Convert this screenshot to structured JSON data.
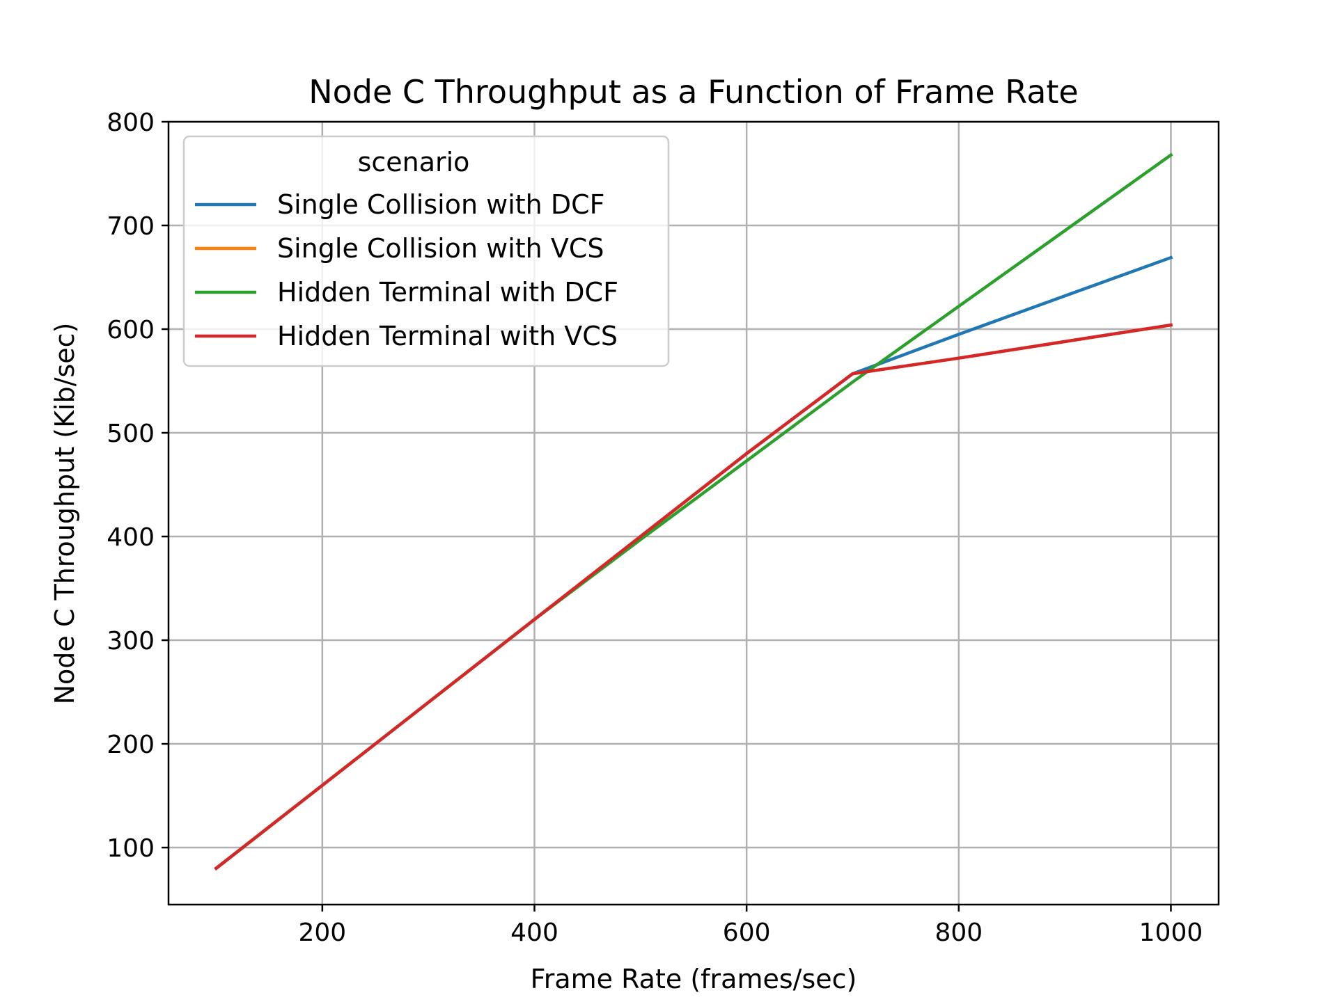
{
  "chart_data": {
    "type": "line",
    "title": "Node C Throughput as a Function of Frame Rate",
    "xlabel": "Frame Rate (frames/sec)",
    "ylabel": "Node C Throughput (Kib/sec)",
    "xlim": [
      55,
      1045
    ],
    "ylim": [
      45,
      800
    ],
    "xticks": [
      200,
      400,
      600,
      800,
      1000
    ],
    "yticks": [
      100,
      200,
      300,
      400,
      500,
      600,
      700,
      800
    ],
    "grid": true,
    "legend": {
      "title": "scenario",
      "placement": "top-left"
    },
    "x": [
      100,
      200,
      300,
      400,
      500,
      600,
      700,
      800,
      900,
      1000
    ],
    "series": [
      {
        "name": "Single Collision with DCF",
        "color": "#1f77b4",
        "values": [
          80,
          160,
          240,
          320,
          400,
          480,
          557,
          595,
          632,
          669
        ]
      },
      {
        "name": "Single Collision with VCS",
        "color": "#ff7f0e",
        "values": [
          80,
          160,
          240,
          320,
          400,
          480,
          557,
          572,
          588,
          604
        ]
      },
      {
        "name": "Hidden Terminal with DCF",
        "color": "#2ca02c",
        "values": [
          80,
          160,
          240,
          320,
          397,
          473,
          549,
          622,
          695,
          768
        ]
      },
      {
        "name": "Hidden Terminal with VCS",
        "color": "#d62728",
        "values": [
          80,
          160,
          240,
          320,
          400,
          480,
          557,
          572,
          588,
          604
        ]
      }
    ]
  }
}
